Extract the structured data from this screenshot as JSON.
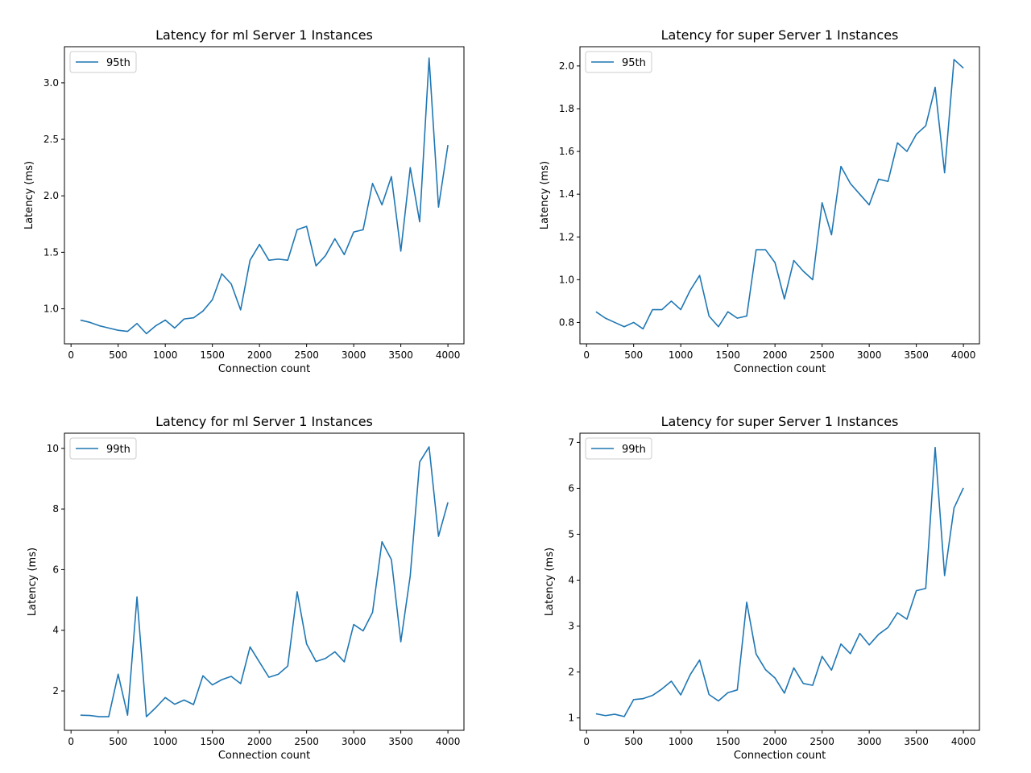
{
  "colors": {
    "series": "#1f77b4",
    "axes": "#000000",
    "legend_border": "#cccccc",
    "background": "#ffffff"
  },
  "chart_data": [
    {
      "type": "line",
      "title": "Latency for ml Server 1 Instances",
      "xlabel": "Connection count",
      "ylabel": "Latency (ms)",
      "xlim": [
        -70,
        4170
      ],
      "ylim": [
        0.69,
        3.32
      ],
      "xticks": [
        0,
        500,
        1000,
        1500,
        2000,
        2500,
        3000,
        3500,
        4000
      ],
      "yticks": [
        1.0,
        1.5,
        2.0,
        2.5,
        3.0
      ],
      "ytick_labels": [
        "1.0",
        "1.5",
        "2.0",
        "2.5",
        "3.0"
      ],
      "legend_position": "upper-left",
      "grid": false,
      "x": [
        100,
        200,
        300,
        400,
        500,
        600,
        700,
        800,
        900,
        1000,
        1100,
        1200,
        1300,
        1400,
        1500,
        1600,
        1700,
        1800,
        1900,
        2000,
        2100,
        2200,
        2300,
        2400,
        2500,
        2600,
        2700,
        2800,
        2900,
        3000,
        3100,
        3200,
        3300,
        3400,
        3500,
        3600,
        3700,
        3800,
        3900,
        4000
      ],
      "series": [
        {
          "name": "95th",
          "values": [
            0.9,
            0.88,
            0.85,
            0.83,
            0.81,
            0.8,
            0.87,
            0.78,
            0.85,
            0.9,
            0.83,
            0.91,
            0.92,
            0.98,
            1.08,
            1.31,
            1.22,
            0.99,
            1.43,
            1.57,
            1.43,
            1.44,
            1.43,
            1.7,
            1.73,
            1.38,
            1.47,
            1.62,
            1.48,
            1.68,
            1.7,
            2.11,
            1.92,
            2.17,
            1.51,
            2.25,
            1.77,
            3.22,
            1.9,
            2.45
          ]
        }
      ]
    },
    {
      "type": "line",
      "title": "Latency for super Server 1 Instances",
      "xlabel": "Connection count",
      "ylabel": "Latency (ms)",
      "xlim": [
        -70,
        4170
      ],
      "ylim": [
        0.7,
        2.09
      ],
      "xticks": [
        0,
        500,
        1000,
        1500,
        2000,
        2500,
        3000,
        3500,
        4000
      ],
      "yticks": [
        0.8,
        1.0,
        1.2,
        1.4,
        1.6,
        1.8,
        2.0
      ],
      "ytick_labels": [
        "0.8",
        "1.0",
        "1.2",
        "1.4",
        "1.6",
        "1.8",
        "2.0"
      ],
      "legend_position": "upper-left",
      "grid": false,
      "x": [
        100,
        200,
        300,
        400,
        500,
        600,
        700,
        800,
        900,
        1000,
        1100,
        1200,
        1300,
        1400,
        1500,
        1600,
        1700,
        1800,
        1900,
        2000,
        2100,
        2200,
        2300,
        2400,
        2500,
        2600,
        2700,
        2800,
        2900,
        3000,
        3100,
        3200,
        3300,
        3400,
        3500,
        3600,
        3700,
        3800,
        3900,
        4000
      ],
      "series": [
        {
          "name": "95th",
          "values": [
            0.85,
            0.82,
            0.8,
            0.78,
            0.8,
            0.77,
            0.86,
            0.86,
            0.9,
            0.86,
            0.95,
            1.02,
            0.83,
            0.78,
            0.85,
            0.82,
            0.83,
            1.14,
            1.14,
            1.08,
            0.91,
            1.09,
            1.04,
            1.0,
            1.36,
            1.21,
            1.53,
            1.45,
            1.4,
            1.35,
            1.47,
            1.46,
            1.64,
            1.6,
            1.68,
            1.72,
            1.9,
            1.5,
            2.03,
            1.99
          ]
        }
      ]
    },
    {
      "type": "line",
      "title": "Latency for ml Server 1 Instances",
      "xlabel": "Connection count",
      "ylabel": "Latency (ms)",
      "xlim": [
        -70,
        4170
      ],
      "ylim": [
        0.7,
        10.5
      ],
      "xticks": [
        0,
        500,
        1000,
        1500,
        2000,
        2500,
        3000,
        3500,
        4000
      ],
      "yticks": [
        2,
        4,
        6,
        8,
        10
      ],
      "ytick_labels": [
        "2",
        "4",
        "6",
        "8",
        "10"
      ],
      "legend_position": "upper-left",
      "grid": false,
      "x": [
        100,
        200,
        300,
        400,
        500,
        600,
        700,
        800,
        900,
        1000,
        1100,
        1200,
        1300,
        1400,
        1500,
        1600,
        1700,
        1800,
        1900,
        2000,
        2100,
        2200,
        2300,
        2400,
        2500,
        2600,
        2700,
        2800,
        2900,
        3000,
        3100,
        3200,
        3300,
        3400,
        3500,
        3600,
        3700,
        3800,
        3900,
        4000
      ],
      "series": [
        {
          "name": "99th",
          "values": [
            1.2,
            1.19,
            1.15,
            1.15,
            2.55,
            1.2,
            5.1,
            1.15,
            1.45,
            1.78,
            1.56,
            1.7,
            1.55,
            2.5,
            2.2,
            2.37,
            2.48,
            2.24,
            3.45,
            2.95,
            2.45,
            2.55,
            2.82,
            5.27,
            3.55,
            2.97,
            3.07,
            3.29,
            2.96,
            4.19,
            3.98,
            4.59,
            6.92,
            6.33,
            3.62,
            5.8,
            9.55,
            10.05,
            7.1,
            8.22
          ]
        }
      ]
    },
    {
      "type": "line",
      "title": "Latency for super Server 1 Instances",
      "xlabel": "Connection count",
      "ylabel": "Latency (ms)",
      "xlim": [
        -70,
        4170
      ],
      "ylim": [
        0.73,
        7.2
      ],
      "xticks": [
        0,
        500,
        1000,
        1500,
        2000,
        2500,
        3000,
        3500,
        4000
      ],
      "yticks": [
        1,
        2,
        3,
        4,
        5,
        6,
        7
      ],
      "ytick_labels": [
        "1",
        "2",
        "3",
        "4",
        "5",
        "6",
        "7"
      ],
      "legend_position": "upper-left",
      "grid": false,
      "x": [
        100,
        200,
        300,
        400,
        500,
        600,
        700,
        800,
        900,
        1000,
        1100,
        1200,
        1300,
        1400,
        1500,
        1600,
        1700,
        1800,
        1900,
        2000,
        2100,
        2200,
        2300,
        2400,
        2500,
        2600,
        2700,
        2800,
        2900,
        3000,
        3100,
        3200,
        3300,
        3400,
        3500,
        3600,
        3700,
        3800,
        3900,
        4000
      ],
      "series": [
        {
          "name": "99th",
          "values": [
            1.09,
            1.05,
            1.08,
            1.03,
            1.4,
            1.42,
            1.49,
            1.63,
            1.8,
            1.5,
            1.94,
            2.26,
            1.51,
            1.37,
            1.55,
            1.61,
            3.52,
            2.39,
            2.05,
            1.87,
            1.54,
            2.09,
            1.75,
            1.71,
            2.34,
            2.04,
            2.61,
            2.4,
            2.84,
            2.59,
            2.82,
            2.97,
            3.29,
            3.15,
            3.77,
            3.82,
            6.89,
            4.1,
            5.57,
            6.01
          ]
        }
      ]
    }
  ]
}
